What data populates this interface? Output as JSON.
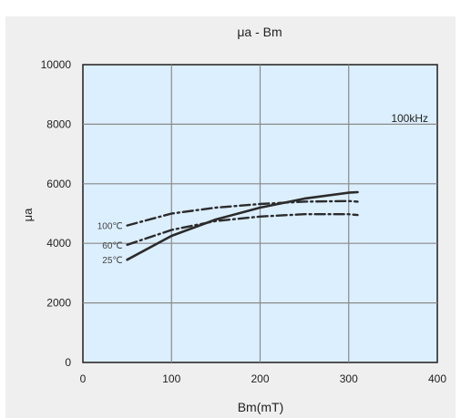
{
  "chart_data": {
    "type": "line",
    "title": "μa - Bm",
    "xlabel": "Bm(mT)",
    "ylabel": "μa",
    "xlim": [
      0,
      400
    ],
    "ylim": [
      0,
      10000
    ],
    "xticks": [
      "0",
      "100",
      "200",
      "300",
      "400"
    ],
    "yticks": [
      "0",
      "2000",
      "4000",
      "6000",
      "8000",
      "10000"
    ],
    "grid": true,
    "annotation": "100kHz",
    "colors": {
      "plot_background": "#dcefff",
      "panel_background": "#efefef",
      "grid": "#8a8a8a",
      "line": "#2b2b2b"
    },
    "series": [
      {
        "name": "25℃",
        "style": "solid",
        "x": [
          50,
          100,
          150,
          200,
          250,
          300,
          310
        ],
        "y": [
          3450,
          4250,
          4800,
          5200,
          5500,
          5700,
          5720
        ]
      },
      {
        "name": "60℃",
        "style": "dash-dot",
        "x": [
          50,
          100,
          150,
          200,
          250,
          300,
          310
        ],
        "y": [
          3950,
          4450,
          4750,
          4900,
          4980,
          4980,
          4950
        ]
      },
      {
        "name": "100℃",
        "style": "dash-dot",
        "x": [
          50,
          100,
          150,
          200,
          250,
          300,
          310
        ],
        "y": [
          4600,
          5000,
          5200,
          5320,
          5400,
          5420,
          5400
        ]
      }
    ]
  }
}
